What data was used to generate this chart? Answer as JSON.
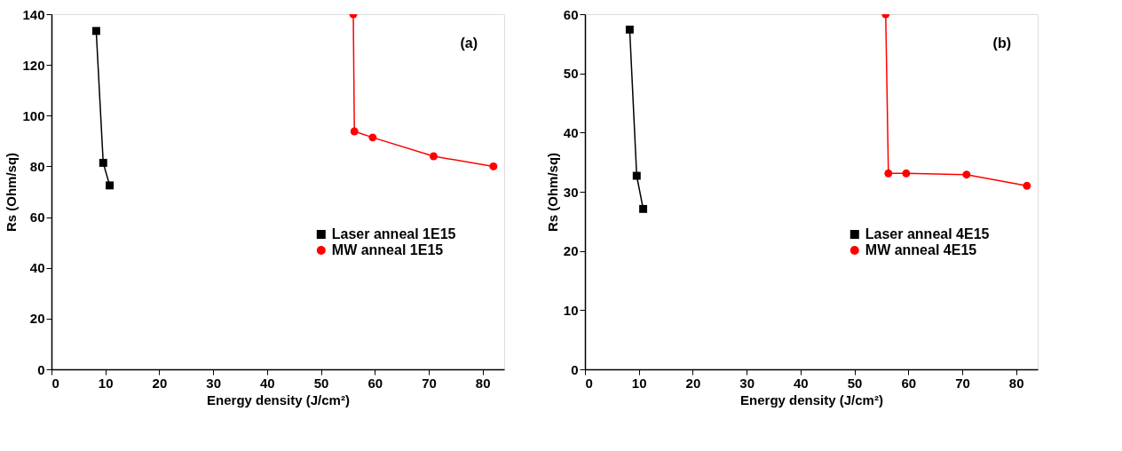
{
  "chart_data": [
    {
      "type": "line",
      "xlabel": "Energy density (J/cm²)",
      "ylabel": "Rs (Ohm/sq)",
      "annotations": [
        "(a)"
      ],
      "xlim": [
        0,
        84
      ],
      "xticks": [
        0,
        10,
        20,
        30,
        40,
        50,
        60,
        70,
        80
      ],
      "ylim": [
        0,
        140
      ],
      "yticks": [
        0,
        20,
        40,
        60,
        80,
        100,
        120,
        140
      ],
      "grid": false,
      "legend": "right",
      "line_style": "solid",
      "series": [
        {
          "name": "Laser anneal 1E15",
          "color": "#000000",
          "marker": "square",
          "x": [
            8.3,
            9.6,
            10.8
          ],
          "values": [
            133.4,
            81.4,
            72.5
          ]
        },
        {
          "name": "MW anneal 1E15",
          "color": "#ff0000",
          "marker": "circle",
          "x": [
            56.0,
            56.2,
            59.6,
            70.9,
            82.0
          ],
          "values": [
            140,
            93.8,
            91.4,
            84,
            80
          ]
        }
      ]
    },
    {
      "type": "line",
      "xlabel": "Energy density (J/cm²)",
      "ylabel": "Rs (Ohm/sq)",
      "annotations": [
        "(b)"
      ],
      "xlim": [
        0,
        84
      ],
      "xticks": [
        0,
        10,
        20,
        30,
        40,
        50,
        60,
        70,
        80
      ],
      "ylim": [
        0,
        60
      ],
      "yticks": [
        0,
        10,
        20,
        30,
        40,
        50,
        60
      ],
      "grid": false,
      "legend": "right",
      "line_style": "solid",
      "series": [
        {
          "name": "Laser anneal 4E15",
          "color": "#000000",
          "marker": "square",
          "x": [
            8.3,
            9.6,
            10.8
          ],
          "values": [
            57.4,
            32.7,
            27.1
          ]
        },
        {
          "name": "MW anneal 4E15",
          "color": "#ff0000",
          "marker": "circle",
          "x": [
            55.8,
            56.3,
            59.6,
            70.8,
            82.0
          ],
          "values": [
            60,
            33.1,
            33.1,
            32.9,
            31.0
          ]
        }
      ]
    }
  ]
}
